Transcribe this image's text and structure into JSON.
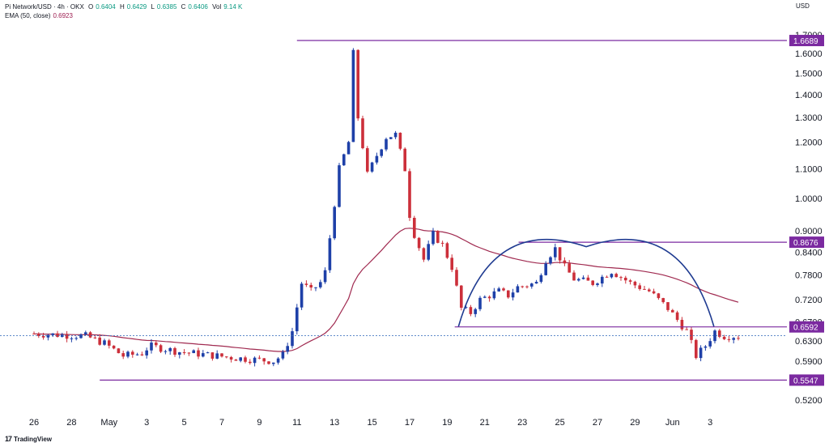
{
  "header": {
    "symbol": "Pi Network/USD · 4h · OKX",
    "o_label": "O",
    "o_value": "0.6404",
    "h_label": "H",
    "h_value": "0.6429",
    "l_label": "L",
    "l_value": "0.6385",
    "c_label": "C",
    "c_value": "0.6406",
    "vol_label": "Vol",
    "vol_value": "9.14 K",
    "ema_label": "EMA (50, close)",
    "ema_value": "0.6923"
  },
  "currency": "USD",
  "footer": {
    "logo": "17",
    "brand": "TradingView"
  },
  "colors": {
    "up": "#1e40a8",
    "down": "#cc2f3a",
    "ema": "#a02a50",
    "level": "#7b2aa0",
    "arc": "#1f3b91",
    "current": "#2a64b8"
  },
  "chart_data": {
    "type": "candlestick",
    "timeframe": "4h",
    "y_axis": {
      "scale": "log",
      "ticks": [
        "1.7000",
        "1.6000",
        "1.5000",
        "1.4000",
        "1.3000",
        "1.2000",
        "1.1000",
        "1.0000",
        "0.9000",
        "0.8400",
        "0.7800",
        "0.7200",
        "0.6700",
        "0.6300",
        "0.5900",
        "0.5200"
      ]
    },
    "x_axis": {
      "ticks": [
        "26",
        "28",
        "May",
        "3",
        "5",
        "7",
        "9",
        "11",
        "13",
        "15",
        "17",
        "19",
        "21",
        "23",
        "25",
        "27",
        "29",
        "Jun",
        "3"
      ]
    },
    "horizontal_levels": [
      {
        "label": "1.6689",
        "value": 1.6689
      },
      {
        "label": "0.8676",
        "value": 0.8676
      },
      {
        "label": "0.6592",
        "value": 0.6592
      },
      {
        "label": "0.5547",
        "value": 0.5547
      }
    ],
    "current_price": 0.6406,
    "ohlc_keypoints": [
      {
        "d": 0,
        "p": 0.645
      },
      {
        "d": 3,
        "p": 0.64
      },
      {
        "d": 4,
        "p": 0.625
      },
      {
        "d": 5,
        "p": 0.6
      },
      {
        "d": 6,
        "p": 0.605
      },
      {
        "d": 6.4,
        "p": 0.62
      },
      {
        "d": 8,
        "p": 0.608
      },
      {
        "d": 11,
        "p": 0.596
      },
      {
        "d": 13,
        "p": 0.59
      },
      {
        "d": 13.5,
        "p": 0.602
      },
      {
        "d": 14,
        "p": 0.65
      },
      {
        "d": 14.5,
        "p": 0.76
      },
      {
        "d": 15,
        "p": 0.74
      },
      {
        "d": 15.7,
        "p": 0.77
      },
      {
        "d": 16,
        "p": 0.88
      },
      {
        "d": 16.5,
        "p": 1.1
      },
      {
        "d": 17,
        "p": 1.2
      },
      {
        "d": 17.25,
        "p": 1.6
      },
      {
        "d": 17.5,
        "p": 1.3
      },
      {
        "d": 18,
        "p": 1.08
      },
      {
        "d": 18.5,
        "p": 1.15
      },
      {
        "d": 19,
        "p": 1.22
      },
      {
        "d": 19.5,
        "p": 1.23
      },
      {
        "d": 20,
        "p": 1.1
      },
      {
        "d": 20.3,
        "p": 0.92
      },
      {
        "d": 21,
        "p": 0.82
      },
      {
        "d": 21.5,
        "p": 0.89
      },
      {
        "d": 22,
        "p": 0.86
      },
      {
        "d": 22.5,
        "p": 0.8
      },
      {
        "d": 23,
        "p": 0.7
      },
      {
        "d": 23.5,
        "p": 0.69
      },
      {
        "d": 24,
        "p": 0.72
      },
      {
        "d": 25,
        "p": 0.74
      },
      {
        "d": 25.5,
        "p": 0.73
      },
      {
        "d": 26,
        "p": 0.75
      },
      {
        "d": 27,
        "p": 0.76
      },
      {
        "d": 27.5,
        "p": 0.82
      },
      {
        "d": 28,
        "p": 0.85
      },
      {
        "d": 28.5,
        "p": 0.8
      },
      {
        "d": 29,
        "p": 0.77
      },
      {
        "d": 30,
        "p": 0.76
      },
      {
        "d": 31,
        "p": 0.79
      },
      {
        "d": 32,
        "p": 0.76
      },
      {
        "d": 33,
        "p": 0.74
      },
      {
        "d": 34,
        "p": 0.7
      },
      {
        "d": 35,
        "p": 0.65
      },
      {
        "d": 35.5,
        "p": 0.6
      },
      {
        "d": 36,
        "p": 0.62
      },
      {
        "d": 36.5,
        "p": 0.65
      },
      {
        "d": 37,
        "p": 0.64
      },
      {
        "d": 37.5,
        "p": 0.64
      }
    ]
  }
}
